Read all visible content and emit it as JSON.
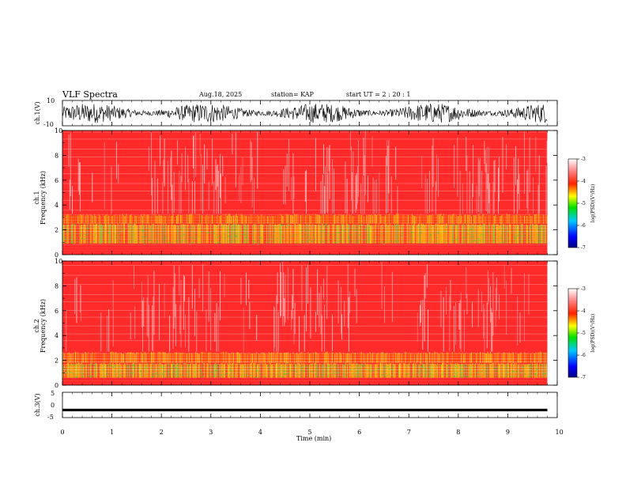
{
  "header": {
    "title": "VLF Spectra",
    "date": "Aug.18, 2025",
    "station": "station= KAP",
    "start_ut": "start  UT  =   2  : 20 : 1"
  },
  "colors": {
    "background_red": "#ff2a2a",
    "noise_white": "#ffffff",
    "band_yellow": "#ffd400",
    "band_green": "#66dd33",
    "trace_black": "#000000"
  },
  "chart_data": [
    {
      "type": "line",
      "name": "ch1-waveform",
      "ylabel": "ch.1(V)",
      "ylim": [
        -10,
        10
      ],
      "yticks": [
        "10",
        "-10"
      ],
      "description_values": "dense oscillating VLF waveform spanning approximately -8 to 8 V"
    },
    {
      "type": "heatmap",
      "name": "ch1-spectrogram",
      "ylabel_line1": "ch.1",
      "ylabel_line2": "Frequency (kHz)",
      "ylim": [
        0,
        10
      ],
      "yticks": [
        "0",
        "2",
        "4",
        "6",
        "8",
        "10"
      ],
      "bands_khz": [
        {
          "from": 0.0,
          "to": 0.7,
          "level": "high"
        },
        {
          "from": 0.9,
          "to": 2.5,
          "level": "moderate"
        },
        {
          "from": 2.5,
          "to": 3.3,
          "level": "mixed"
        }
      ]
    },
    {
      "type": "heatmap",
      "name": "ch2-spectrogram",
      "ylabel_line1": "ch.2",
      "ylabel_line2": "Frequency (kHz)",
      "ylim": [
        0,
        10
      ],
      "yticks": [
        "0",
        "2",
        "4",
        "6",
        "8",
        "10"
      ],
      "bands_khz": [
        {
          "from": 0.0,
          "to": 0.6,
          "level": "high"
        },
        {
          "from": 0.6,
          "to": 1.8,
          "level": "moderate"
        },
        {
          "from": 1.8,
          "to": 2.7,
          "level": "mixed"
        }
      ]
    },
    {
      "type": "line",
      "name": "ch3-waveform",
      "ylabel": "ch.3(V)",
      "ylim": [
        -5,
        5
      ],
      "yticks": [
        "5",
        "0",
        "-5"
      ],
      "description_values": "nearly flat trace at approximately -2 V"
    }
  ],
  "colorbar": {
    "label": "log(PSD)(V²/Hz)",
    "ticks": [
      "-3",
      "-4",
      "-5",
      "-6",
      "-7"
    ],
    "range": [
      -7,
      -3
    ]
  },
  "xaxis": {
    "label": "Time (min)",
    "ticks": [
      "0",
      "1",
      "2",
      "3",
      "4",
      "5",
      "6",
      "7",
      "8",
      "9",
      "10"
    ],
    "xlim": [
      0,
      10
    ],
    "data_end_min": 9.8
  }
}
